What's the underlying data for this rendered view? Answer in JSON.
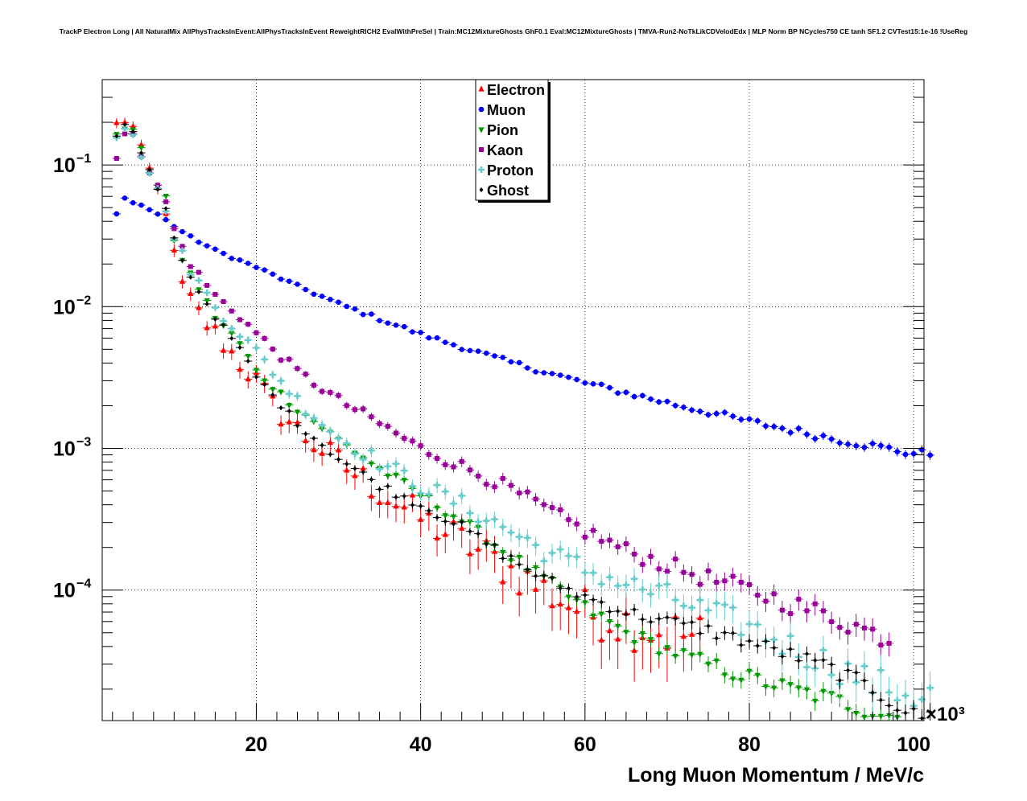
{
  "chart_data": {
    "type": "scatter",
    "title": "TrackP Electron Long | All NaturalMix AllPhysTracksInEvent:AllPhysTracksInEvent ReweightRICH2 EvalWithPreSel | Train:MC12MixtureGhosts GhF0.1 Eval:MC12MixtureGhosts | TMVA-Run2-NoTkLikCDVelodEdx | MLP Norm BP NCycles750 CE tanh SF1.2 CVTest15:1e-16 !UseReg",
    "xlabel": "Long Muon Momentum / MeV/c",
    "ylabel": "",
    "x_multiplier_label": "×10³",
    "xlim": [
      1250,
      101250
    ],
    "ylim": [
      1.2e-05,
      0.4
    ],
    "yscale": "log",
    "grid": true,
    "legend_position": "top-center",
    "x_ticks": [
      {
        "value": 20000,
        "label": "20"
      },
      {
        "value": 40000,
        "label": "40"
      },
      {
        "value": 60000,
        "label": "60"
      },
      {
        "value": 80000,
        "label": "80"
      },
      {
        "value": 100000,
        "label": "100"
      }
    ],
    "y_ticks": [
      {
        "value": 0.1,
        "label": "10",
        "exp": "−1"
      },
      {
        "value": 0.01,
        "label": "10",
        "exp": "−2"
      },
      {
        "value": 0.001,
        "label": "10",
        "exp": "−3"
      },
      {
        "value": 0.0001,
        "label": "10",
        "exp": "−4"
      }
    ],
    "series": [
      {
        "name": "Electron",
        "color": "#ff0000",
        "marker": "triangle-up",
        "anchors_x": [
          3000,
          4000,
          5000,
          6000,
          7000,
          8000,
          9000,
          10000,
          11000,
          12000,
          13000,
          14000,
          15000,
          16000,
          18000,
          20000,
          22000,
          26000,
          30000,
          35000,
          40000,
          45000,
          50000,
          55000,
          60000,
          70000,
          80000,
          90000,
          100000
        ],
        "anchors_y": [
          0.19,
          0.21,
          0.18,
          0.12,
          0.09,
          0.065,
          0.05,
          0.022,
          0.014,
          0.011,
          0.009,
          0.0075,
          0.0065,
          0.0055,
          0.004,
          0.003,
          0.002,
          0.0012,
          0.0008,
          0.0005,
          0.00032,
          0.00022,
          0.00015,
          0.0001,
          7e-05,
          5e-05,
          4e-05,
          3.5e-05,
          3e-05
        ],
        "n": 72,
        "err": 0.25
      },
      {
        "name": "Muon",
        "color": "#0000ff",
        "marker": "circle",
        "anchors_x": [
          3000,
          4000,
          6000,
          8000,
          10000,
          12000,
          15000,
          20000,
          25000,
          30000,
          40000,
          50000,
          60000,
          70000,
          80000,
          90000,
          100000
        ],
        "anchors_y": [
          0.045,
          0.058,
          0.052,
          0.045,
          0.037,
          0.031,
          0.025,
          0.019,
          0.014,
          0.0105,
          0.0064,
          0.0042,
          0.0029,
          0.0021,
          0.00155,
          0.00118,
          0.00092
        ],
        "n": 100,
        "err": 0.03
      },
      {
        "name": "Pion",
        "color": "#009900",
        "marker": "triangle-down",
        "anchors_x": [
          3000,
          5000,
          7000,
          9000,
          10000,
          12000,
          15000,
          18000,
          20000,
          25000,
          30000,
          35000,
          40000,
          45000,
          50000,
          55000,
          60000,
          65000,
          70000,
          75000,
          80000,
          85000,
          90000,
          95000,
          100000
        ],
        "anchors_y": [
          0.17,
          0.18,
          0.09,
          0.06,
          0.028,
          0.017,
          0.0085,
          0.0055,
          0.0035,
          0.0019,
          0.00115,
          0.00072,
          0.00047,
          0.00031,
          0.00019,
          0.00012,
          7.5e-05,
          5e-05,
          3.8e-05,
          3e-05,
          2.4e-05,
          2e-05,
          1.7e-05,
          1.4e-05,
          1.2e-05
        ],
        "n": 98,
        "err": 0.07
      },
      {
        "name": "Kaon",
        "color": "#990099",
        "marker": "square",
        "anchors_x": [
          3000,
          4000,
          5000,
          6000,
          7000,
          8000,
          9000,
          10000,
          12000,
          15000,
          18000,
          20000,
          25000,
          30000,
          35000,
          40000,
          45000,
          50000,
          55000,
          60000,
          65000,
          70000,
          75000,
          80000,
          85000,
          90000,
          95000,
          100000
        ],
        "anchors_y": [
          0.11,
          0.16,
          0.17,
          0.12,
          0.09,
          0.07,
          0.055,
          0.035,
          0.02,
          0.012,
          0.0085,
          0.0065,
          0.0035,
          0.0022,
          0.0015,
          0.001,
          0.00075,
          0.00055,
          0.00038,
          0.00026,
          0.00019,
          0.00015,
          0.00012,
          0.0001,
          8e-05,
          6.5e-05,
          5e-05,
          4e-05
        ],
        "n": 95,
        "err": 0.08
      },
      {
        "name": "Proton",
        "color": "#66cccc",
        "marker": "cross",
        "anchors_x": [
          3000,
          4000,
          5000,
          6000,
          7000,
          8000,
          9000,
          10000,
          12000,
          15000,
          18000,
          20000,
          25000,
          30000,
          35000,
          40000,
          45000,
          50000,
          55000,
          60000,
          65000,
          70000,
          75000,
          80000,
          85000,
          90000,
          95000,
          100000
        ],
        "anchors_y": [
          0.16,
          0.19,
          0.17,
          0.12,
          0.09,
          0.065,
          0.05,
          0.03,
          0.018,
          0.01,
          0.0065,
          0.0048,
          0.0022,
          0.0012,
          0.0008,
          0.00055,
          0.0004,
          0.00028,
          0.00019,
          0.00014,
          0.00011,
          9e-05,
          7e-05,
          5.5e-05,
          4e-05,
          3e-05,
          2.2e-05,
          1.8e-05
        ],
        "n": 100,
        "err": 0.12
      },
      {
        "name": "Ghost",
        "color": "#000000",
        "marker": "diamond",
        "anchors_x": [
          3000,
          4000,
          5000,
          6000,
          7000,
          8000,
          9000,
          10000,
          12000,
          15000,
          18000,
          20000,
          25000,
          30000,
          35000,
          40000,
          45000,
          50000,
          55000,
          60000,
          65000,
          70000,
          75000,
          80000,
          85000,
          90000,
          95000,
          100000
        ],
        "anchors_y": [
          0.16,
          0.19,
          0.17,
          0.12,
          0.09,
          0.066,
          0.05,
          0.03,
          0.016,
          0.0085,
          0.005,
          0.0032,
          0.0015,
          0.00085,
          0.00055,
          0.0004,
          0.00028,
          0.00018,
          0.00012,
          9e-05,
          7e-05,
          6e-05,
          5.2e-05,
          4.3e-05,
          3.5e-05,
          2.8e-05,
          2e-05,
          1.3e-05
        ],
        "n": 100,
        "err": 0.06
      }
    ]
  }
}
